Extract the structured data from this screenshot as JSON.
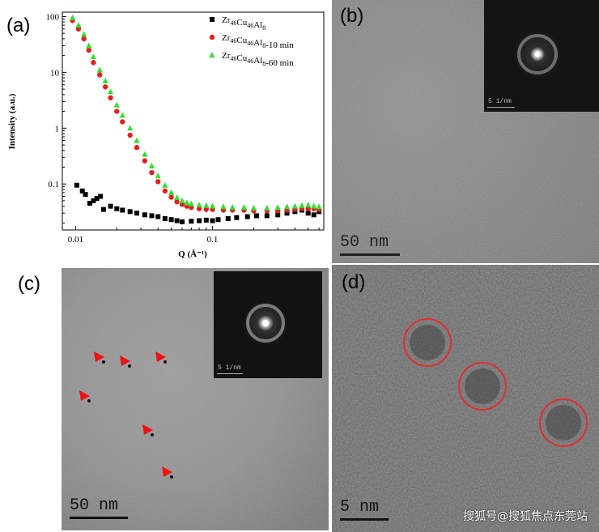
{
  "panels": {
    "a": {
      "label": "(a)"
    },
    "b": {
      "label": "(b)",
      "scale_bar": "50 nm",
      "inset_scale": "5 1/nm"
    },
    "c": {
      "label": "(c)",
      "scale_bar": "50 nm",
      "inset_scale": "5 1/nm"
    },
    "d": {
      "label": "(d)",
      "scale_bar": "5 nm"
    }
  },
  "watermark": "搜狐号@搜狐焦点东莞站",
  "chart_data": {
    "type": "scatter",
    "xlabel": "Q (Å⁻¹)",
    "ylabel": "Intensity (a.u.)",
    "xscale": "log",
    "yscale": "log",
    "xlim": [
      0.008,
      0.65
    ],
    "ylim": [
      0.015,
      120
    ],
    "x_ticks": [
      "0.01",
      "0.1"
    ],
    "y_ticks": [
      "0.1",
      "1",
      "10",
      "100"
    ],
    "legend_position": "top-right",
    "series": [
      {
        "name": "Zr46Cu46Al8",
        "legend_parts": [
          "Zr",
          "46",
          "Cu",
          "46",
          "Al",
          "8",
          ""
        ],
        "marker": "square",
        "color": "#000000",
        "x": [
          0.0102,
          0.0112,
          0.0118,
          0.0127,
          0.0135,
          0.0143,
          0.0152,
          0.016,
          0.018,
          0.02,
          0.022,
          0.025,
          0.028,
          0.032,
          0.036,
          0.04,
          0.045,
          0.05,
          0.055,
          0.06,
          0.07,
          0.08,
          0.09,
          0.1,
          0.11,
          0.13,
          0.15,
          0.18,
          0.21,
          0.25,
          0.3,
          0.35,
          0.4,
          0.45,
          0.5,
          0.55,
          0.6
        ],
        "y": [
          0.095,
          0.075,
          0.065,
          0.045,
          0.05,
          0.055,
          0.06,
          0.035,
          0.04,
          0.036,
          0.034,
          0.032,
          0.03,
          0.028,
          0.027,
          0.026,
          0.024,
          0.023,
          0.022,
          0.021,
          0.0215,
          0.022,
          0.0225,
          0.022,
          0.023,
          0.024,
          0.025,
          0.026,
          0.027,
          0.027,
          0.028,
          0.03,
          0.032,
          0.034,
          0.03,
          0.028,
          0.032
        ]
      },
      {
        "name": "Zr46Cu46Al8-10 min",
        "legend_parts": [
          "Zr",
          "46",
          "Cu",
          "46",
          "Al",
          "8",
          "-10 min"
        ],
        "marker": "circle",
        "color": "#e02020",
        "x": [
          0.0095,
          0.0105,
          0.0115,
          0.0125,
          0.0135,
          0.015,
          0.0165,
          0.018,
          0.02,
          0.022,
          0.025,
          0.028,
          0.032,
          0.036,
          0.04,
          0.045,
          0.05,
          0.055,
          0.06,
          0.065,
          0.07,
          0.08,
          0.09,
          0.1,
          0.12,
          0.14,
          0.17,
          0.2,
          0.25,
          0.3,
          0.35,
          0.4,
          0.45,
          0.5,
          0.55,
          0.6
        ],
        "y": [
          85,
          60,
          40,
          25,
          15,
          9,
          5.5,
          3.5,
          2.0,
          1.3,
          0.75,
          0.45,
          0.26,
          0.16,
          0.11,
          0.075,
          0.058,
          0.048,
          0.043,
          0.04,
          0.038,
          0.036,
          0.035,
          0.035,
          0.034,
          0.034,
          0.034,
          0.033,
          0.033,
          0.033,
          0.034,
          0.035,
          0.036,
          0.036,
          0.036,
          0.035
        ]
      },
      {
        "name": "Zr46Cu46Al8-60 min",
        "legend_parts": [
          "Zr",
          "46",
          "Cu",
          "46",
          "Al",
          "8",
          "-60 min"
        ],
        "marker": "triangle",
        "color": "#33dd33",
        "x": [
          0.0095,
          0.0105,
          0.0115,
          0.0125,
          0.0135,
          0.015,
          0.0165,
          0.018,
          0.02,
          0.022,
          0.025,
          0.028,
          0.032,
          0.036,
          0.04,
          0.045,
          0.05,
          0.055,
          0.06,
          0.065,
          0.07,
          0.08,
          0.09,
          0.1,
          0.12,
          0.14,
          0.17,
          0.2,
          0.25,
          0.3,
          0.35,
          0.4,
          0.45,
          0.5,
          0.55,
          0.6
        ],
        "y": [
          95,
          70,
          48,
          30,
          19,
          11,
          7,
          4.5,
          2.6,
          1.7,
          1.0,
          0.6,
          0.34,
          0.21,
          0.14,
          0.095,
          0.07,
          0.057,
          0.05,
          0.046,
          0.044,
          0.042,
          0.041,
          0.04,
          0.039,
          0.038,
          0.038,
          0.037,
          0.037,
          0.038,
          0.039,
          0.04,
          0.041,
          0.042,
          0.04,
          0.039
        ]
      }
    ]
  }
}
